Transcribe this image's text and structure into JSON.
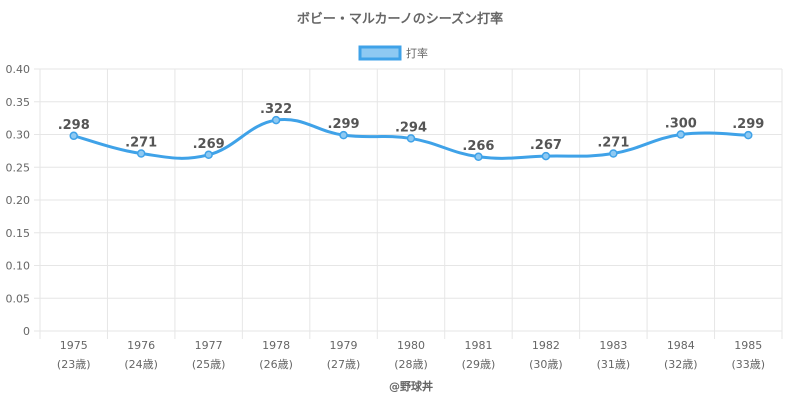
{
  "chart_data": {
    "type": "line",
    "title": "ボビー・マルカーノのシーズン打率",
    "legend": {
      "label": "打率",
      "position": "top"
    },
    "categories": [
      "1975",
      "1976",
      "1977",
      "1978",
      "1979",
      "1980",
      "1981",
      "1982",
      "1983",
      "1984",
      "1985"
    ],
    "sublabels": [
      "(23歳)",
      "(24歳)",
      "(25歳)",
      "(26歳)",
      "(27歳)",
      "(28歳)",
      "(29歳)",
      "(30歳)",
      "(31歳)",
      "(32歳)",
      "(33歳)"
    ],
    "series": [
      {
        "name": "打率",
        "values": [
          0.298,
          0.271,
          0.269,
          0.322,
          0.299,
          0.294,
          0.266,
          0.267,
          0.271,
          0.3,
          0.299
        ],
        "labels": [
          ".298",
          ".271",
          ".269",
          ".322",
          ".299",
          ".294",
          ".266",
          ".267",
          ".271",
          ".300",
          ".299"
        ]
      }
    ],
    "ylim": [
      0,
      0.4
    ],
    "yticks": [
      "0",
      "0.05",
      "0.10",
      "0.15",
      "0.20",
      "0.25",
      "0.30",
      "0.35",
      "0.40"
    ],
    "grid": true,
    "colors": {
      "line": "#3fa2e8",
      "point_fill": "#8ec9f2",
      "grid": "#e6e6e6"
    },
    "credit": "@野球丼"
  }
}
